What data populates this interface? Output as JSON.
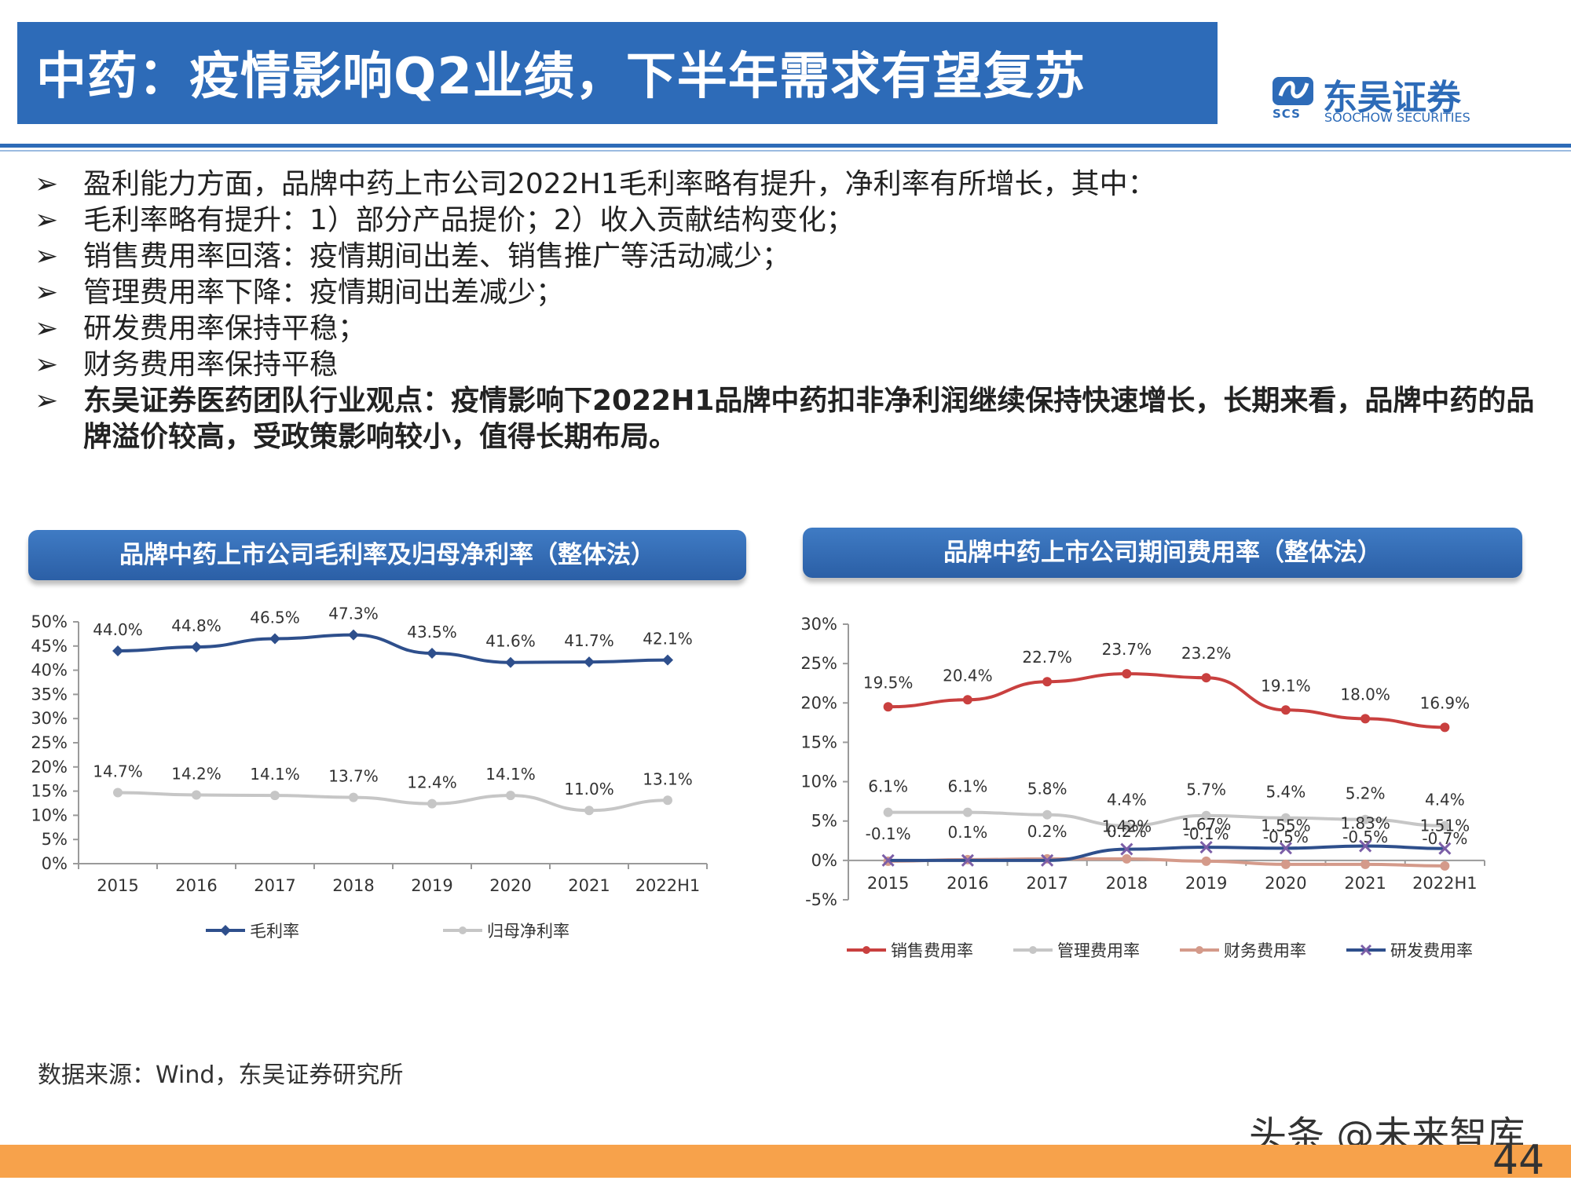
{
  "title": "中药：疫情影响Q2业绩，下半年需求有望复苏",
  "logo": {
    "mark_text": "SCS",
    "cn": "东吴证券",
    "en": "SOOCHOW SECURITIES"
  },
  "bullet_marker": "➢",
  "bullets": [
    "盈利能力方面，品牌中药上市公司2022H1毛利率略有提升，净利率有所增长，其中：",
    "毛利率略有提升：1）部分产品提价；2）收入贡献结构变化；",
    "销售费用率回落：疫情期间出差、销售推广等活动减少；",
    "管理费用率下降：疫情期间出差减少；",
    "研发费用率保持平稳；",
    "财务费用率保持平稳"
  ],
  "bold_bullet": "东吴证券医药团队行业观点：疫情影响下2022H1品牌中药扣非净利润继续保持快速增长，长期来看，品牌中药的品牌溢价较高，受政策影响较小，值得长期布局。",
  "left_panel_title": "品牌中药上市公司毛利率及归母净利率（整体法）",
  "right_panel_title": "品牌中药上市公司期间费用率（整体法）",
  "source": "数据来源：Wind，东吴证券研究所",
  "watermark": "头条 @未来智库",
  "page_number": "44",
  "chart_data": [
    {
      "type": "line",
      "title": "品牌中药上市公司毛利率及归母净利率（整体法）",
      "categories": [
        "2015",
        "2016",
        "2017",
        "2018",
        "2019",
        "2020",
        "2021",
        "2022H1"
      ],
      "y_ticks": [
        "0%",
        "5%",
        "10%",
        "15%",
        "20%",
        "25%",
        "30%",
        "35%",
        "40%",
        "45%",
        "50%"
      ],
      "ylim": [
        0,
        50
      ],
      "grid": false,
      "legend_position": "bottom",
      "series": [
        {
          "name": "毛利率",
          "color": "#2e4f8c",
          "marker": "diamond",
          "values": [
            44.0,
            44.8,
            46.5,
            47.3,
            43.5,
            41.6,
            41.7,
            42.1
          ],
          "labels": [
            "44.0%",
            "44.8%",
            "46.5%",
            "47.3%",
            "43.5%",
            "41.6%",
            "41.7%",
            "42.1%"
          ]
        },
        {
          "name": "归母净利率",
          "color": "#c6c6c6",
          "marker": "circle",
          "values": [
            14.7,
            14.2,
            14.1,
            13.7,
            12.4,
            14.1,
            11.0,
            13.1
          ],
          "labels": [
            "14.7%",
            "14.2%",
            "14.1%",
            "13.7%",
            "12.4%",
            "14.1%",
            "11.0%",
            "13.1%"
          ]
        }
      ]
    },
    {
      "type": "line",
      "title": "品牌中药上市公司期间费用率（整体法）",
      "categories": [
        "2015",
        "2016",
        "2017",
        "2018",
        "2019",
        "2020",
        "2021",
        "2022H1"
      ],
      "y_ticks": [
        "-5%",
        "0%",
        "5%",
        "10%",
        "15%",
        "20%",
        "25%",
        "30%"
      ],
      "ylim": [
        -5,
        30
      ],
      "grid": false,
      "legend_position": "bottom",
      "series": [
        {
          "name": "销售费用率",
          "color": "#c9403f",
          "marker": "circle",
          "values": [
            19.5,
            20.4,
            22.7,
            23.7,
            23.2,
            19.1,
            18.0,
            16.9
          ],
          "labels": [
            "19.5%",
            "20.4%",
            "22.7%",
            "23.7%",
            "23.2%",
            "19.1%",
            "18.0%",
            "16.9%"
          ]
        },
        {
          "name": "管理费用率",
          "color": "#c6c6c6",
          "marker": "circle",
          "values": [
            6.1,
            6.1,
            5.8,
            4.4,
            5.7,
            5.4,
            5.2,
            4.4
          ],
          "labels": [
            "6.1%",
            "6.1%",
            "5.8%",
            "4.4%",
            "5.7%",
            "5.4%",
            "5.2%",
            "4.4%"
          ]
        },
        {
          "name": "财务费用率",
          "color": "#d49a8a",
          "marker": "circle",
          "values": [
            -0.1,
            0.1,
            0.2,
            0.2,
            -0.1,
            -0.5,
            -0.5,
            -0.7
          ],
          "labels": [
            "-0.1%",
            "0.1%",
            "0.2%",
            "0.2%",
            "-0.1%",
            "-0.5%",
            "-0.5%",
            "-0.7%"
          ]
        },
        {
          "name": "研发费用率",
          "color": "#2e4f8c",
          "marker": "x",
          "values": [
            0,
            0,
            0,
            1.42,
            1.67,
            1.55,
            1.83,
            1.51
          ],
          "labels": [
            "",
            "",
            "",
            "1.42%",
            "1.67%",
            "1.55%",
            "1.83%",
            "1.51%"
          ]
        }
      ]
    }
  ]
}
